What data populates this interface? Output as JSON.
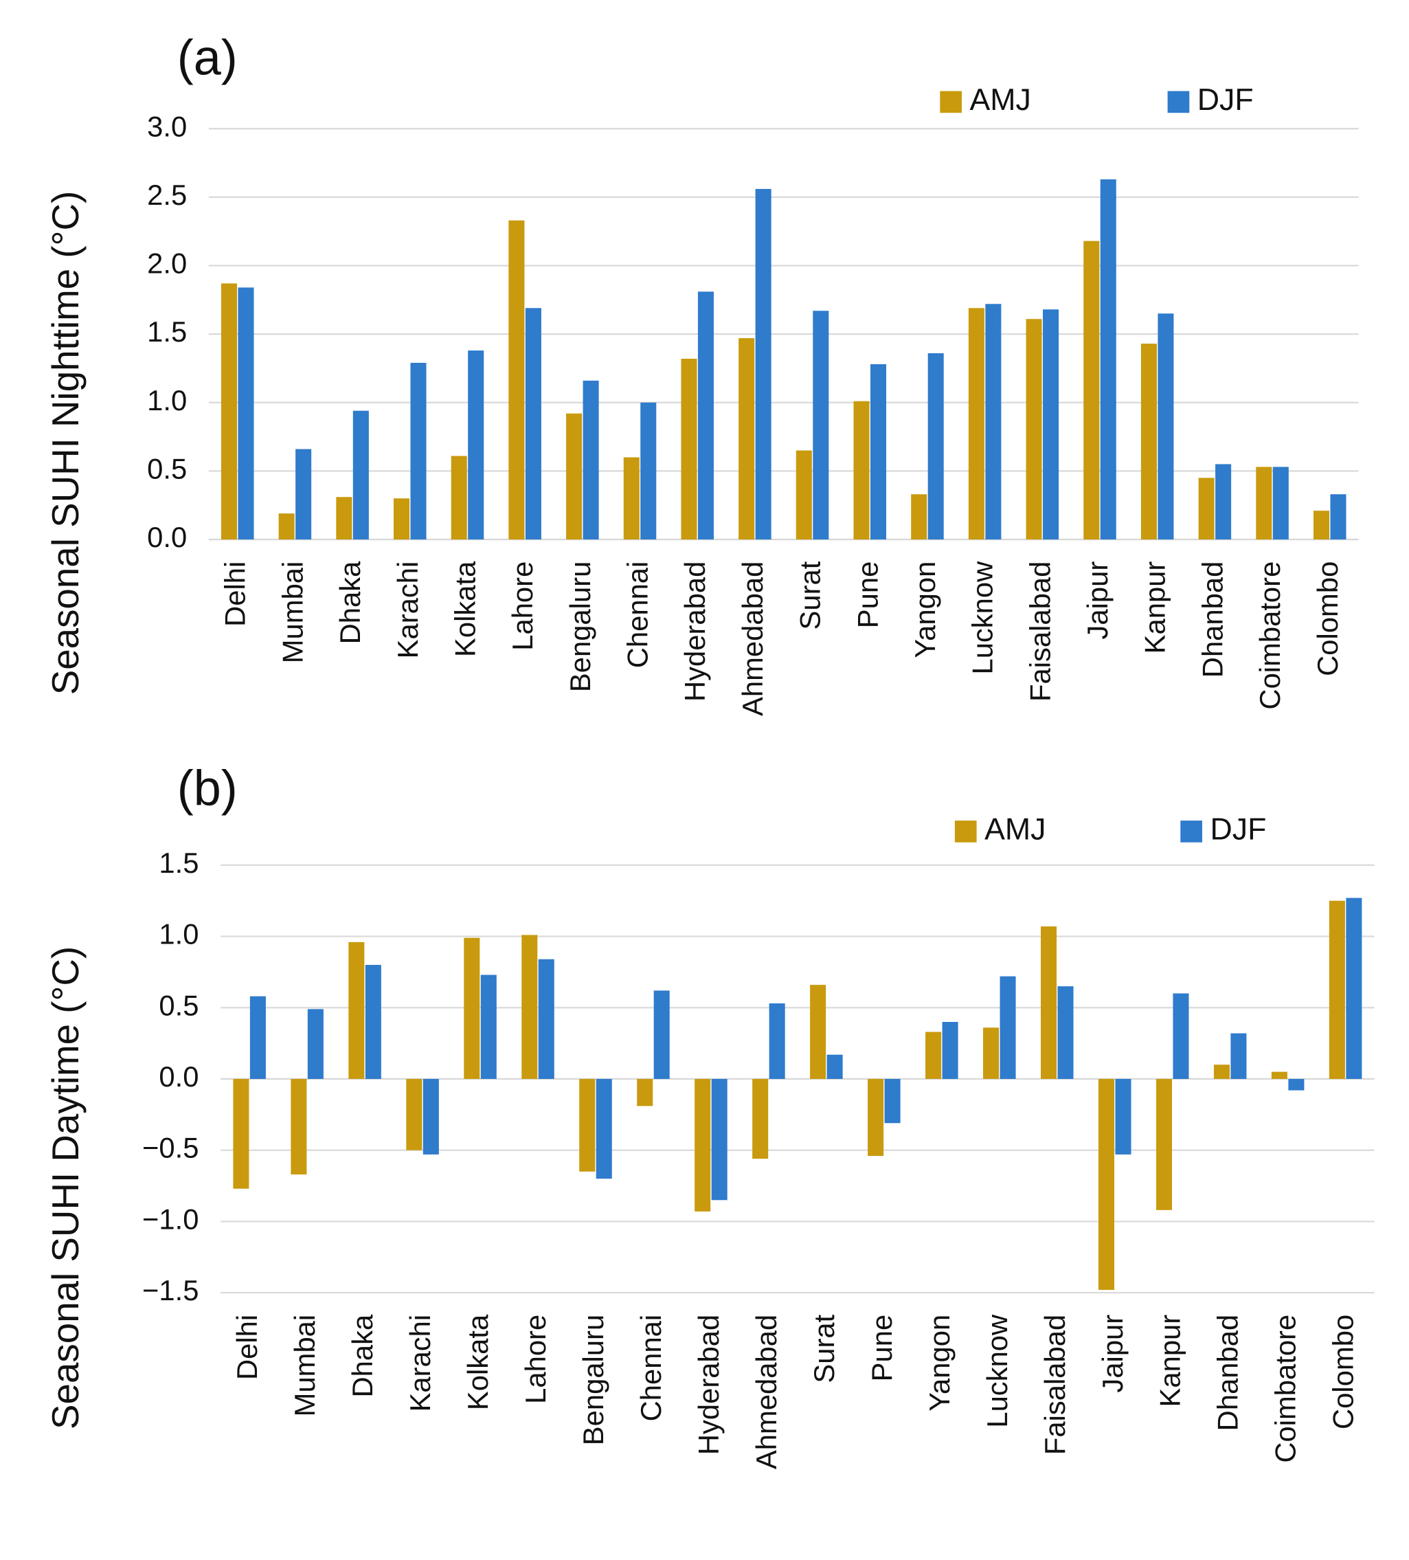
{
  "chart_data": [
    {
      "type": "bar",
      "title": "(a)",
      "ylabel": "Seasonal SUHI Nighttime (°C)",
      "categories": [
        "Delhi",
        "Mumbai",
        "Dhaka",
        "Karachi",
        "Kolkata",
        "Lahore",
        "Bengaluru",
        "Chennai",
        "Hyderabad",
        "Ahmedabad",
        "Surat",
        "Pune",
        "Yangon",
        "Lucknow",
        "Faisalabad",
        "Jaipur",
        "Kanpur",
        "Dhanbad",
        "Coimbatore",
        "Colombo"
      ],
      "series": [
        {
          "name": "AMJ",
          "color": "#c99a0e",
          "values": [
            1.87,
            0.19,
            0.31,
            0.3,
            0.61,
            2.33,
            0.92,
            0.6,
            1.32,
            1.47,
            0.65,
            1.01,
            0.33,
            1.69,
            1.61,
            2.18,
            1.43,
            0.45,
            0.53,
            0.21
          ]
        },
        {
          "name": "DJF",
          "color": "#2f7bcc",
          "values": [
            1.84,
            0.66,
            0.94,
            1.29,
            1.38,
            1.69,
            1.16,
            1.0,
            1.81,
            2.56,
            1.67,
            1.28,
            1.36,
            1.72,
            1.68,
            2.63,
            1.65,
            0.55,
            0.53,
            0.33
          ]
        }
      ],
      "ylim": [
        0,
        3
      ],
      "yticks": [
        {
          "value": 0,
          "label": "0.0"
        },
        0.5,
        {
          "value": 1,
          "label": "1.0"
        },
        1.5,
        {
          "value": 2,
          "label": "2.0"
        },
        2.5,
        {
          "value": 3,
          "label": "3.0"
        }
      ],
      "grid": true,
      "legend": "top-right"
    },
    {
      "type": "bar",
      "title": "(b)",
      "ylabel": "Seasonal SUHI Daytime (°C)",
      "categories": [
        "Delhi",
        "Mumbai",
        "Dhaka",
        "Karachi",
        "Kolkata",
        "Lahore",
        "Bengaluru",
        "Chennai",
        "Hyderabad",
        "Ahmedabad",
        "Surat",
        "Pune",
        "Yangon",
        "Lucknow",
        "Faisalabad",
        "Jaipur",
        "Kanpur",
        "Dhanbad",
        "Coimbatore",
        "Colombo"
      ],
      "series": [
        {
          "name": "AMJ",
          "color": "#c99a0e",
          "values": [
            -0.77,
            -0.67,
            0.96,
            -0.5,
            0.99,
            1.01,
            -0.65,
            -0.19,
            -0.93,
            -0.56,
            0.66,
            -0.54,
            0.33,
            0.36,
            1.07,
            -1.48,
            -0.92,
            0.1,
            0.05,
            1.25
          ]
        },
        {
          "name": "DJF",
          "color": "#2f7bcc",
          "values": [
            0.58,
            0.49,
            0.8,
            -0.53,
            0.73,
            0.84,
            -0.7,
            0.62,
            -0.85,
            0.53,
            0.17,
            -0.31,
            0.4,
            0.72,
            0.65,
            -0.53,
            0.6,
            0.32,
            -0.08,
            1.27
          ]
        }
      ],
      "ylim": [
        -1.5,
        1.5
      ],
      "yticks": [
        {
          "value": -1.5,
          "label": "−1.5"
        },
        {
          "value": -1,
          "label": "−1.0"
        },
        {
          "value": -0.5,
          "label": "−0.5"
        },
        {
          "value": 0,
          "label": "0.0"
        },
        0.5,
        {
          "value": 1,
          "label": "1.0"
        },
        1.5
      ],
      "grid": true,
      "legend": "top-right"
    }
  ]
}
